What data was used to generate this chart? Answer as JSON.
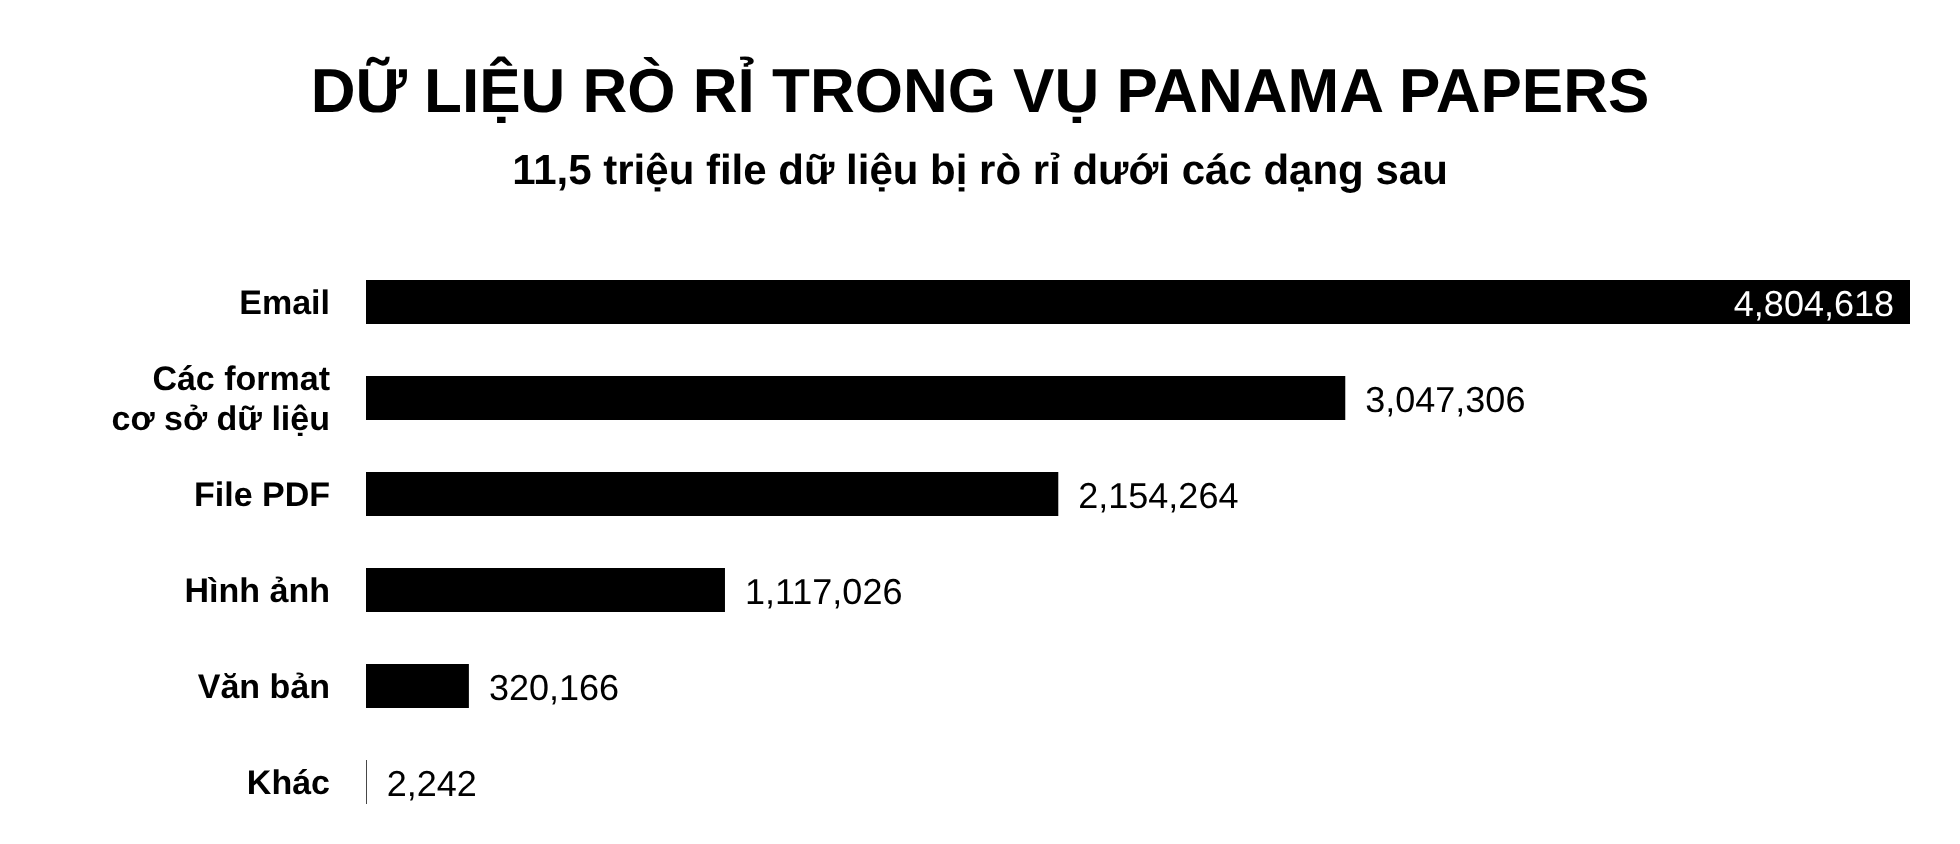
{
  "chart_data": {
    "type": "bar",
    "orientation": "horizontal",
    "title": "DỮ LIỆU RÒ RỈ TRONG VỤ PANAMA PAPERS",
    "subtitle": "11,5 triệu file dữ liệu bị rò rỉ dưới các dạng sau",
    "categories": [
      "Email",
      "Các format cơ sở dữ liệu",
      "File PDF",
      "Hình ảnh",
      "Văn bản",
      "Khác"
    ],
    "values": [
      4804618,
      3047306,
      2154264,
      1117026,
      320166,
      2242
    ],
    "value_labels": [
      "4,804,618",
      "3,047,306",
      "2,154,264",
      "1,117,026",
      "320,166",
      "2,242"
    ],
    "color": "#000000"
  }
}
